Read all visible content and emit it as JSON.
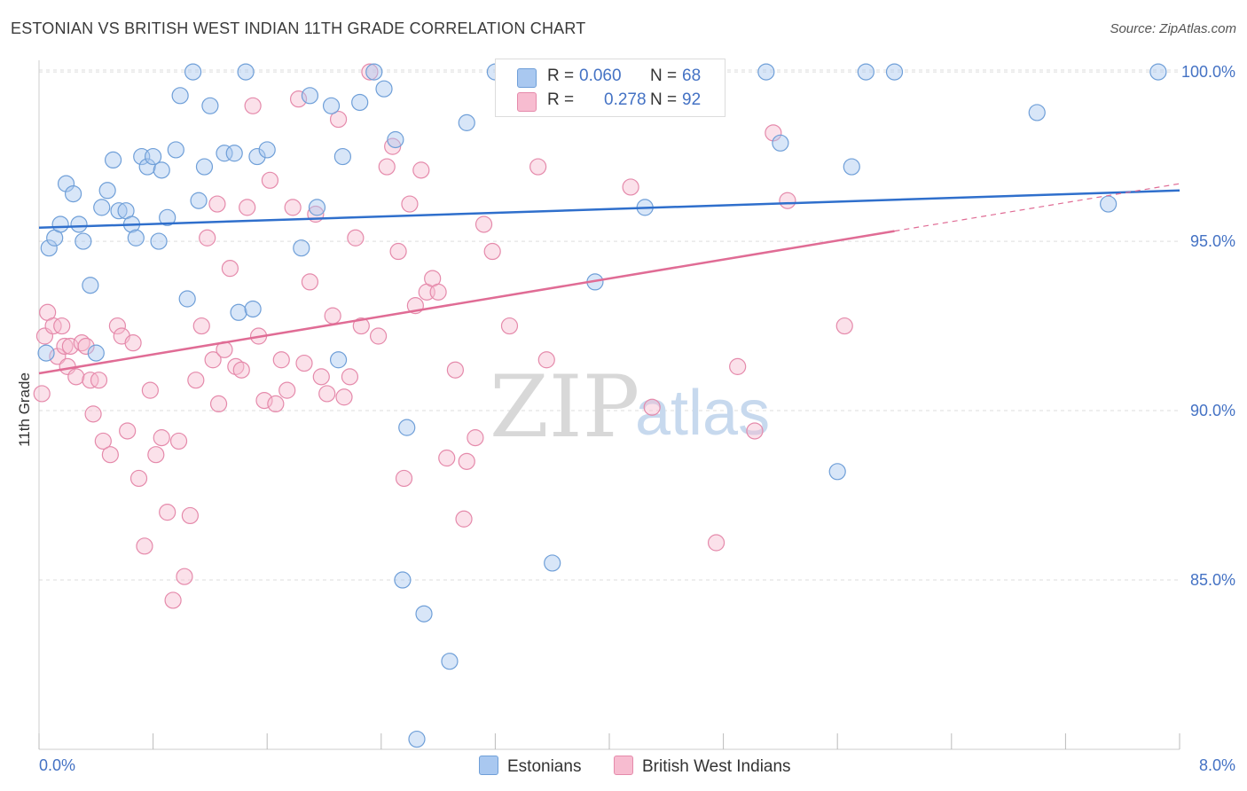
{
  "header": {
    "title": "ESTONIAN VS BRITISH WEST INDIAN 11TH GRADE CORRELATION CHART",
    "source": "Source: ZipAtlas.com"
  },
  "legend": {
    "r_label": "R =",
    "n_label": "N =",
    "series": [
      {
        "name": "Estonians",
        "r": "0.060",
        "n": "68",
        "color": "#a9c8f0",
        "stroke": "#6f9fd8"
      },
      {
        "name": "British West Indians",
        "r": "0.278",
        "n": "92",
        "color": "#f7bcd0",
        "stroke": "#e58aab"
      }
    ]
  },
  "watermark": {
    "zip": "ZIP",
    "atlas": "atlas"
  },
  "colors": {
    "estonian_line": "#2f6fcc",
    "bwi_line": "#e06c95",
    "tick_label": "#4472c4",
    "grid": "#dddddd"
  },
  "chart_data": {
    "type": "scatter",
    "title": "ESTONIAN VS BRITISH WEST INDIAN 11TH GRADE CORRELATION CHART",
    "xlabel": "",
    "ylabel": "11th Grade",
    "xlim": [
      0,
      8.0
    ],
    "ylim": [
      80,
      100.5
    ],
    "x_tick_labels": [
      "0.0%",
      "8.0%"
    ],
    "y_ticks": [
      85,
      90,
      95,
      100
    ],
    "y_tick_labels": [
      "85.0%",
      "90.0%",
      "95.0%",
      "100.0%"
    ],
    "grid": true,
    "legend_position": "top-center",
    "series": [
      {
        "name": "Estonians",
        "r": 0.06,
        "n": 68,
        "trend": {
          "x": [
            0,
            8.0
          ],
          "y": [
            95.4,
            96.5
          ],
          "dashed_from": null
        },
        "points": [
          [
            0.05,
            91.7
          ],
          [
            0.07,
            94.8
          ],
          [
            0.11,
            95.1
          ],
          [
            0.15,
            95.5
          ],
          [
            0.19,
            96.7
          ],
          [
            0.24,
            96.4
          ],
          [
            0.28,
            95.5
          ],
          [
            0.31,
            95.0
          ],
          [
            0.36,
            93.7
          ],
          [
            0.4,
            91.7
          ],
          [
            0.44,
            96.0
          ],
          [
            0.48,
            96.5
          ],
          [
            0.52,
            97.4
          ],
          [
            0.56,
            95.9
          ],
          [
            0.61,
            95.9
          ],
          [
            0.65,
            95.5
          ],
          [
            0.68,
            95.1
          ],
          [
            0.72,
            97.5
          ],
          [
            0.76,
            97.2
          ],
          [
            0.8,
            97.5
          ],
          [
            0.84,
            95.0
          ],
          [
            0.86,
            97.1
          ],
          [
            0.9,
            95.7
          ],
          [
            0.96,
            97.7
          ],
          [
            0.99,
            99.3
          ],
          [
            1.04,
            93.3
          ],
          [
            1.08,
            100.0
          ],
          [
            1.12,
            96.2
          ],
          [
            1.16,
            97.2
          ],
          [
            1.2,
            99.0
          ],
          [
            1.3,
            97.6
          ],
          [
            1.37,
            97.6
          ],
          [
            1.4,
            92.9
          ],
          [
            1.45,
            100.0
          ],
          [
            1.5,
            93.0
          ],
          [
            1.53,
            97.5
          ],
          [
            1.6,
            97.7
          ],
          [
            1.84,
            94.8
          ],
          [
            1.9,
            99.3
          ],
          [
            1.95,
            96.0
          ],
          [
            2.05,
            99.0
          ],
          [
            2.1,
            91.5
          ],
          [
            2.13,
            97.5
          ],
          [
            2.25,
            99.1
          ],
          [
            2.35,
            100.0
          ],
          [
            2.42,
            99.5
          ],
          [
            2.5,
            98.0
          ],
          [
            2.58,
            89.5
          ],
          [
            2.65,
            80.3
          ],
          [
            2.7,
            84.0
          ],
          [
            2.88,
            82.6
          ],
          [
            3.0,
            98.5
          ],
          [
            3.2,
            100.0
          ],
          [
            3.45,
            100.0
          ],
          [
            3.6,
            85.5
          ],
          [
            3.9,
            93.8
          ],
          [
            4.25,
            96.0
          ],
          [
            4.5,
            100.0
          ],
          [
            5.1,
            100.0
          ],
          [
            5.2,
            97.9
          ],
          [
            5.6,
            88.2
          ],
          [
            5.7,
            97.2
          ],
          [
            5.8,
            100.0
          ],
          [
            6.0,
            100.0
          ],
          [
            7.0,
            98.8
          ],
          [
            7.5,
            96.1
          ],
          [
            7.85,
            100.0
          ],
          [
            2.55,
            85.0
          ]
        ]
      },
      {
        "name": "British West Indians",
        "r": 0.278,
        "n": 92,
        "trend": {
          "x": [
            0,
            8.0
          ],
          "y": [
            91.1,
            96.7
          ],
          "dashed_from": 6.0
        },
        "points": [
          [
            0.02,
            90.5
          ],
          [
            0.04,
            92.2
          ],
          [
            0.06,
            92.9
          ],
          [
            0.1,
            92.5
          ],
          [
            0.13,
            91.6
          ],
          [
            0.16,
            92.5
          ],
          [
            0.18,
            91.9
          ],
          [
            0.2,
            91.3
          ],
          [
            0.22,
            91.9
          ],
          [
            0.26,
            91.0
          ],
          [
            0.3,
            92.0
          ],
          [
            0.33,
            91.9
          ],
          [
            0.36,
            90.9
          ],
          [
            0.38,
            89.9
          ],
          [
            0.42,
            90.9
          ],
          [
            0.45,
            89.1
          ],
          [
            0.5,
            88.7
          ],
          [
            0.55,
            92.5
          ],
          [
            0.58,
            92.2
          ],
          [
            0.62,
            89.4
          ],
          [
            0.66,
            92.0
          ],
          [
            0.7,
            88.0
          ],
          [
            0.74,
            86.0
          ],
          [
            0.78,
            90.6
          ],
          [
            0.82,
            88.7
          ],
          [
            0.86,
            89.2
          ],
          [
            0.9,
            87.0
          ],
          [
            0.94,
            84.4
          ],
          [
            0.98,
            89.1
          ],
          [
            1.02,
            85.1
          ],
          [
            1.06,
            86.9
          ],
          [
            1.1,
            90.9
          ],
          [
            1.14,
            92.5
          ],
          [
            1.18,
            95.1
          ],
          [
            1.22,
            91.5
          ],
          [
            1.26,
            90.2
          ],
          [
            1.3,
            91.8
          ],
          [
            1.34,
            94.2
          ],
          [
            1.38,
            91.3
          ],
          [
            1.42,
            91.2
          ],
          [
            1.46,
            96.0
          ],
          [
            1.5,
            99.0
          ],
          [
            1.54,
            92.2
          ],
          [
            1.58,
            90.3
          ],
          [
            1.62,
            96.8
          ],
          [
            1.66,
            90.2
          ],
          [
            1.7,
            91.5
          ],
          [
            1.74,
            90.6
          ],
          [
            1.78,
            96.0
          ],
          [
            1.82,
            99.2
          ],
          [
            1.86,
            91.4
          ],
          [
            1.9,
            93.8
          ],
          [
            1.94,
            95.8
          ],
          [
            1.98,
            91.0
          ],
          [
            2.02,
            90.5
          ],
          [
            2.06,
            92.8
          ],
          [
            2.1,
            98.6
          ],
          [
            2.14,
            90.4
          ],
          [
            2.18,
            91.0
          ],
          [
            2.22,
            95.1
          ],
          [
            2.26,
            92.5
          ],
          [
            2.32,
            100.0
          ],
          [
            2.38,
            92.2
          ],
          [
            2.44,
            97.2
          ],
          [
            2.48,
            97.8
          ],
          [
            2.52,
            94.7
          ],
          [
            2.56,
            88.0
          ],
          [
            2.6,
            96.1
          ],
          [
            2.64,
            93.1
          ],
          [
            2.68,
            97.1
          ],
          [
            2.72,
            93.5
          ],
          [
            2.76,
            93.9
          ],
          [
            2.8,
            93.5
          ],
          [
            2.86,
            88.6
          ],
          [
            2.92,
            91.2
          ],
          [
            2.98,
            86.8
          ],
          [
            3.06,
            89.2
          ],
          [
            3.12,
            95.5
          ],
          [
            3.18,
            94.7
          ],
          [
            3.3,
            92.5
          ],
          [
            3.5,
            97.2
          ],
          [
            3.56,
            91.5
          ],
          [
            4.15,
            96.6
          ],
          [
            4.3,
            90.1
          ],
          [
            4.75,
            86.1
          ],
          [
            4.9,
            91.3
          ],
          [
            5.02,
            89.4
          ],
          [
            5.15,
            98.2
          ],
          [
            5.25,
            96.2
          ],
          [
            5.65,
            92.5
          ],
          [
            3.0,
            88.5
          ],
          [
            1.25,
            96.1
          ]
        ]
      }
    ]
  }
}
